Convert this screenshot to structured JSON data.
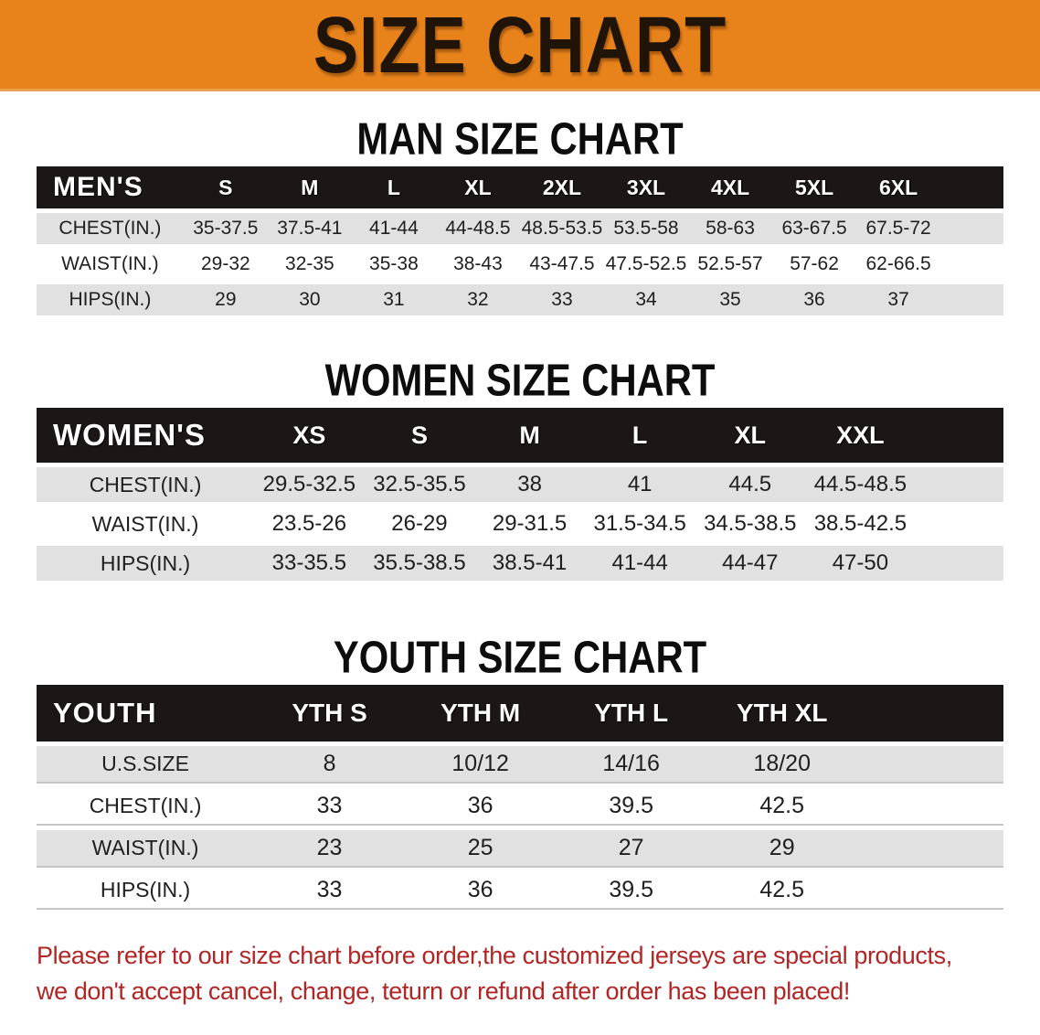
{
  "banner": {
    "title": "SIZE CHART"
  },
  "colors": {
    "banner_bg": "#E8831C",
    "banner_text": "#201409",
    "header_bg": "#1B1716",
    "header_text": "#FFFFFF",
    "row_gray": "#E2E1E1",
    "row_white": "#FFFFFF",
    "heading_text": "#0D0D0D",
    "footer_red": "#B22525"
  },
  "sections": {
    "men": {
      "heading": "MAN SIZE CHART",
      "group_label": "MEN'S",
      "sizes": [
        "S",
        "M",
        "L",
        "XL",
        "2XL",
        "3XL",
        "4XL",
        "5XL",
        "6XL"
      ],
      "rows": [
        {
          "label": "CHEST(IN.)",
          "values": [
            "35-37.5",
            "37.5-41",
            "41-44",
            "44-48.5",
            "48.5-53.5",
            "53.5-58",
            "58-63",
            "63-67.5",
            "67.5-72"
          ]
        },
        {
          "label": "WAIST(IN.)",
          "values": [
            "29-32",
            "32-35",
            "35-38",
            "38-43",
            "43-47.5",
            "47.5-52.5",
            "52.5-57",
            "57-62",
            "62-66.5"
          ]
        },
        {
          "label": "HIPS(IN.)",
          "values": [
            "29",
            "30",
            "31",
            "32",
            "33",
            "34",
            "35",
            "36",
            "37"
          ]
        }
      ]
    },
    "women": {
      "heading": "WOMEN SIZE CHART",
      "group_label": "WOMEN'S",
      "sizes": [
        "XS",
        "S",
        "M",
        "L",
        "XL",
        "XXL"
      ],
      "rows": [
        {
          "label": "CHEST(IN.)",
          "values": [
            "29.5-32.5",
            "32.5-35.5",
            "38",
            "41",
            "44.5",
            "44.5-48.5"
          ]
        },
        {
          "label": "WAIST(IN.)",
          "values": [
            "23.5-26",
            "26-29",
            "29-31.5",
            "31.5-34.5",
            "34.5-38.5",
            "38.5-42.5"
          ]
        },
        {
          "label": "HIPS(IN.)",
          "values": [
            "33-35.5",
            "35.5-38.5",
            "38.5-41",
            "41-44",
            "44-47",
            "47-50"
          ]
        }
      ]
    },
    "youth": {
      "heading": "YOUTH SIZE CHART",
      "group_label": "YOUTH",
      "sizes": [
        "YTH S",
        "YTH M",
        "YTH L",
        "YTH XL"
      ],
      "rows": [
        {
          "label": "U.S.SIZE",
          "values": [
            "8",
            "10/12",
            "14/16",
            "18/20"
          ]
        },
        {
          "label": "CHEST(IN.)",
          "values": [
            "33",
            "36",
            "39.5",
            "42.5"
          ]
        },
        {
          "label": "WAIST(IN.)",
          "values": [
            "23",
            "25",
            "27",
            "29"
          ]
        },
        {
          "label": "HIPS(IN.)",
          "values": [
            "33",
            "36",
            "39.5",
            "42.5"
          ]
        }
      ]
    }
  },
  "footer": {
    "line1": "Please refer to our size chart before order,the customized jerseys are special products,",
    "line2": "we don't accept cancel, change, teturn or refund after order has been placed!"
  }
}
